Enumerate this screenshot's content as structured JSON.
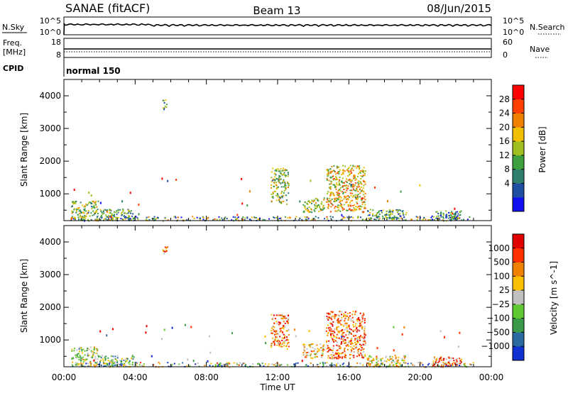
{
  "header": {
    "station": "SANAE (fitACF)",
    "beam": "Beam 13",
    "date": "08/Jun/2015"
  },
  "nsky": {
    "label": "N.Sky",
    "ticks": [
      "10^5",
      "10^0"
    ],
    "right_label": "N.Search",
    "right_ticks": [
      "10^5",
      "10^0"
    ]
  },
  "freq": {
    "label_line1": "Freq.",
    "label_line2": "[MHz]",
    "ticks": [
      "18",
      "8"
    ],
    "right_label": "Nave",
    "right_ticks": [
      "60",
      "0"
    ]
  },
  "cpid": {
    "label": "CPID",
    "value": "normal 150"
  },
  "chart_data": [
    {
      "type": "heatmap",
      "parameter": "power",
      "ylabel": "Slant Range [km]",
      "ylim": [
        180,
        4500
      ],
      "yticks": [
        "1000",
        "2000",
        "3000",
        "4000"
      ],
      "colorbar": {
        "label": "Power [dB]",
        "ticks": [
          "28",
          "24",
          "20",
          "16",
          "12",
          "8",
          "4"
        ],
        "range": [
          0,
          32
        ],
        "colors": [
          "#1010f0",
          "#1f4fa0",
          "#2f7f6f",
          "#3fa03f",
          "#a0c020",
          "#f0c000",
          "#f08000",
          "#ff4000",
          "#ff0000"
        ]
      },
      "clusters": [
        {
          "t": [
            0.4,
            1.9
          ],
          "r": [
            200,
            800
          ],
          "level": 0.45
        },
        {
          "t": [
            1.9,
            3.9
          ],
          "r": [
            200,
            550
          ],
          "level": 0.4
        },
        {
          "t": [
            5.5,
            5.8
          ],
          "r": [
            3600,
            3900
          ],
          "level": 0.35
        },
        {
          "t": [
            11.6,
            12.6
          ],
          "r": [
            700,
            1800
          ],
          "level": 0.45
        },
        {
          "t": [
            13.4,
            14.6
          ],
          "r": [
            450,
            900
          ],
          "level": 0.5
        },
        {
          "t": [
            14.7,
            16.9
          ],
          "r": [
            450,
            1900
          ],
          "level": 0.6
        },
        {
          "t": [
            17.0,
            19.2
          ],
          "r": [
            200,
            550
          ],
          "level": 0.35
        },
        {
          "t": [
            20.6,
            22.3
          ],
          "r": [
            200,
            500
          ],
          "level": 0.3
        }
      ]
    },
    {
      "type": "heatmap",
      "parameter": "velocity",
      "ylabel": "Slant Range [km]",
      "ylim": [
        180,
        4500
      ],
      "yticks": [
        "1000",
        "2000",
        "3000",
        "4000"
      ],
      "colorbar": {
        "label": "Velocity [m s^-1]",
        "ticks": [
          "1000",
          "500",
          "100",
          "25",
          "−25",
          "−100",
          "−500",
          "−1000"
        ],
        "colors": [
          "#1030d0",
          "#2a6aa0",
          "#3a9a4a",
          "#60c830",
          "#c0c0c0",
          "#f8c000",
          "#f08000",
          "#ff3000",
          "#e00000"
        ]
      },
      "clusters": [
        {
          "t": [
            0.4,
            1.9
          ],
          "r": [
            200,
            800
          ],
          "level": 0.45
        },
        {
          "t": [
            1.9,
            3.9
          ],
          "r": [
            200,
            550
          ],
          "level": 0.4
        },
        {
          "t": [
            5.5,
            5.8
          ],
          "r": [
            3600,
            3900
          ],
          "level": 0.75
        },
        {
          "t": [
            11.6,
            12.6
          ],
          "r": [
            700,
            1800
          ],
          "level": 0.75
        },
        {
          "t": [
            13.4,
            14.6
          ],
          "r": [
            450,
            900
          ],
          "level": 0.65
        },
        {
          "t": [
            14.7,
            16.9
          ],
          "r": [
            450,
            1900
          ],
          "level": 0.75
        },
        {
          "t": [
            17.0,
            19.2
          ],
          "r": [
            200,
            550
          ],
          "level": 0.55
        },
        {
          "t": [
            20.6,
            22.3
          ],
          "r": [
            200,
            500
          ],
          "level": 0.75
        }
      ]
    }
  ],
  "time_axis": {
    "label": "Time UT",
    "xlim": [
      0,
      24
    ],
    "ticks": [
      "00:00",
      "04:00",
      "08:00",
      "12:00",
      "16:00",
      "20:00",
      "00:00"
    ]
  }
}
